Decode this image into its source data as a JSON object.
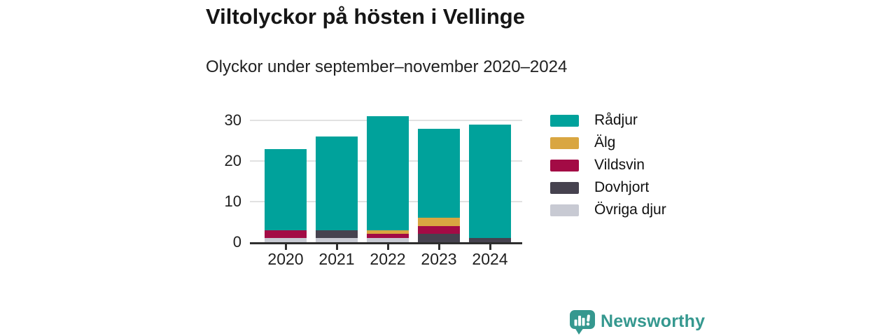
{
  "header": {
    "title": "Viltolyckor på hösten i Vellinge",
    "subtitle": "Olyckor under september–november 2020–2024"
  },
  "chart_data": {
    "type": "bar",
    "stacked": true,
    "title": "Viltolyckor på hösten i Vellinge",
    "subtitle": "Olyckor under september–november 2020–2024",
    "categories": [
      "2020",
      "2021",
      "2022",
      "2023",
      "2024"
    ],
    "series": [
      {
        "name": "Rådjur",
        "color": "#00a29b",
        "values": [
          20,
          23,
          28,
          22,
          28
        ]
      },
      {
        "name": "Älg",
        "color": "#d9a641",
        "values": [
          0,
          0,
          1,
          2,
          0
        ]
      },
      {
        "name": "Vildsvin",
        "color": "#a30b45",
        "values": [
          2,
          0,
          1,
          2,
          0
        ]
      },
      {
        "name": "Dovhjort",
        "color": "#46424f",
        "values": [
          0,
          2,
          0,
          2,
          1
        ]
      },
      {
        "name": "Övriga djur",
        "color": "#c8cad3",
        "values": [
          1,
          1,
          1,
          0,
          0
        ]
      }
    ],
    "totals": [
      23,
      26,
      31,
      28,
      29
    ],
    "stack_order_bottom_to_top": [
      "Övriga djur",
      "Dovhjort",
      "Vildsvin",
      "Älg",
      "Rådjur"
    ],
    "xlabel": "",
    "ylabel": "",
    "yticks": [
      0,
      10,
      20,
      30
    ],
    "ylim": [
      0,
      32
    ],
    "grid": "horizontal",
    "legend_position": "right"
  },
  "footer": {
    "brand": "Newsworthy",
    "brand_color": "#35988f",
    "logo_icon": "newsworthy-speech-bubble-bar-chart-icon"
  },
  "colors": {
    "axis": "#2e2e2e",
    "gridline": "#e2e2e2",
    "text": "#1a1a1a"
  }
}
